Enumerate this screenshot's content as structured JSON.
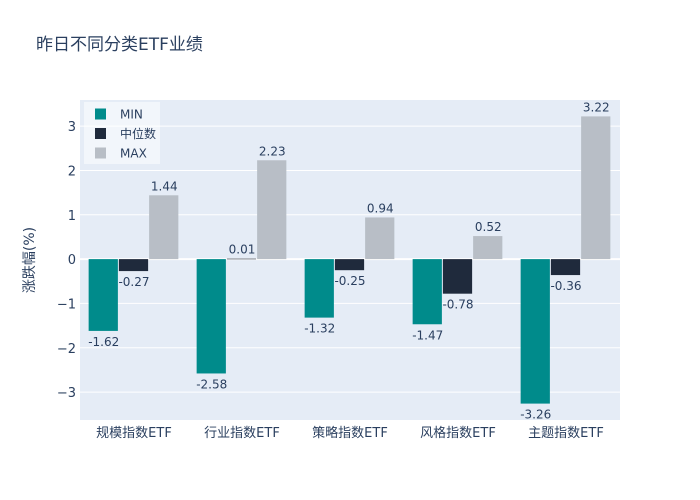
{
  "chart_data": {
    "type": "bar",
    "title": "昨日不同分类ETF业绩",
    "xlabel": "",
    "ylabel": "涨跌幅(%)",
    "categories": [
      "规模指数ETF",
      "行业指数ETF",
      "策略指数ETF",
      "风格指数ETF",
      "主题指数ETF"
    ],
    "series": [
      {
        "name": "MIN",
        "values": [
          -1.62,
          -2.58,
          -1.32,
          -1.47,
          -3.26
        ],
        "color": "#008b8b"
      },
      {
        "name": "中位数",
        "values": [
          -0.27,
          0.01,
          -0.25,
          -0.78,
          -0.36
        ],
        "color": "#1f2a3c"
      },
      {
        "name": "MAX",
        "values": [
          1.44,
          2.23,
          0.94,
          0.52,
          3.22
        ],
        "color": "#b8bec6"
      }
    ],
    "ylim": [
      -3.63,
      3.59
    ],
    "yticks": [
      -3,
      -2,
      -1,
      0,
      1,
      2,
      3
    ],
    "ytick_labels": [
      "−3",
      "−2",
      "−1",
      "0",
      "1",
      "2",
      "3"
    ],
    "grid": true,
    "legend_position": "top-left",
    "plot_background": "#e5ecf6"
  }
}
